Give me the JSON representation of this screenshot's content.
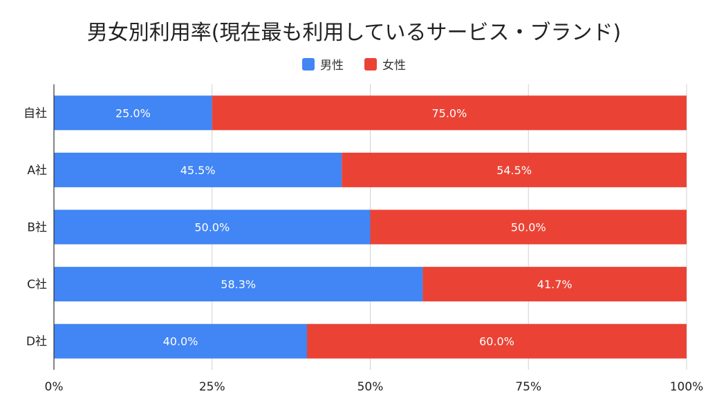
{
  "chart_data": {
    "type": "bar",
    "orientation": "horizontal",
    "stacked": "percent",
    "title": "男女別利用率(現在最も利用しているサービス・ブランド)",
    "categories": [
      "自社",
      "A社",
      "B社",
      "C社",
      "D社"
    ],
    "series": [
      {
        "name": "男性",
        "color": "#4285F4",
        "values": [
          25.0,
          45.5,
          50.0,
          58.3,
          40.0
        ],
        "labels": [
          "25.0%",
          "45.5%",
          "50.0%",
          "58.3%",
          "40.0%"
        ]
      },
      {
        "name": "女性",
        "color": "#EA4335",
        "values": [
          75.0,
          54.5,
          50.0,
          41.7,
          60.0
        ],
        "labels": [
          "75.0%",
          "54.5%",
          "50.0%",
          "41.7%",
          "60.0%"
        ]
      }
    ],
    "xlim": [
      0,
      100
    ],
    "xticks": [
      "0%",
      "25%",
      "50%",
      "75%",
      "100%"
    ],
    "grid": true,
    "legend": "top-center"
  }
}
